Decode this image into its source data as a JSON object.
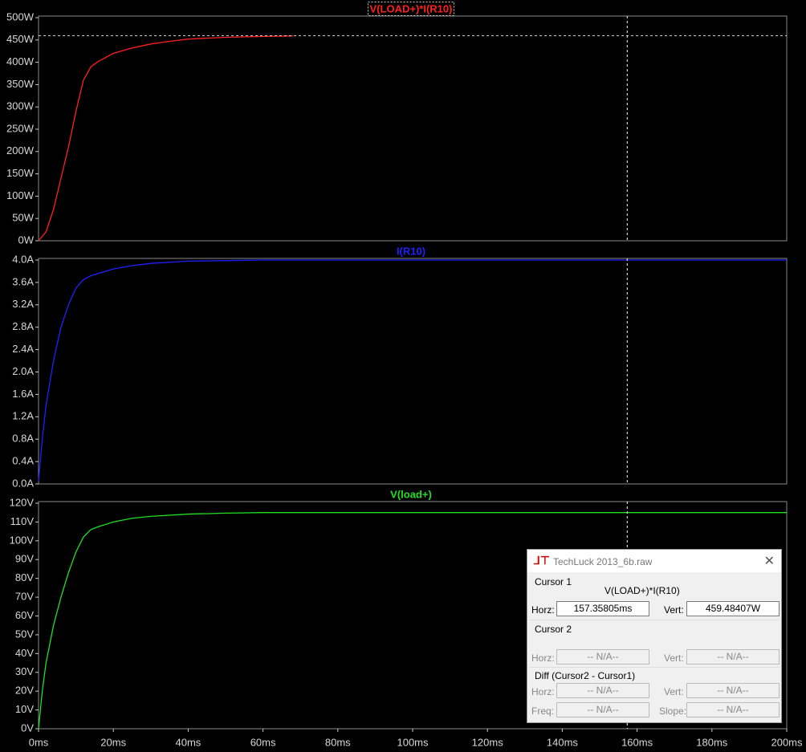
{
  "chart_data": [
    {
      "type": "line",
      "title": "V(LOAD+)*I(R10)",
      "x": [
        0,
        2,
        4,
        6,
        8,
        10,
        12,
        14,
        16,
        20,
        25,
        30,
        35,
        40,
        50,
        60,
        68
      ],
      "series": [
        {
          "color": "#ff2020",
          "values": [
            0,
            20,
            70,
            140,
            210,
            290,
            360,
            390,
            402,
            420,
            432,
            441,
            447,
            452,
            456,
            458,
            459
          ]
        }
      ],
      "xlim": [
        0,
        200
      ],
      "ylim": [
        0,
        500
      ],
      "yticks": [
        {
          "value": 0,
          "label": "0W"
        },
        {
          "value": 50,
          "label": "50W"
        },
        {
          "value": 100,
          "label": "100W"
        },
        {
          "value": 150,
          "label": "150W"
        },
        {
          "value": 200,
          "label": "200W"
        },
        {
          "value": 250,
          "label": "250W"
        },
        {
          "value": 300,
          "label": "300W"
        },
        {
          "value": 350,
          "label": "350W"
        },
        {
          "value": 400,
          "label": "400W"
        },
        {
          "value": 450,
          "label": "450W"
        },
        {
          "value": 500,
          "label": "500W"
        }
      ]
    },
    {
      "type": "line",
      "title": "I(R10)",
      "x": [
        0,
        1,
        2,
        4,
        6,
        8,
        10,
        12,
        14,
        16,
        20,
        25,
        30,
        40,
        50,
        60,
        80,
        120,
        160,
        200
      ],
      "series": [
        {
          "color": "#2020ff",
          "values": [
            0.05,
            0.8,
            1.4,
            2.2,
            2.8,
            3.2,
            3.5,
            3.65,
            3.72,
            3.76,
            3.84,
            3.9,
            3.94,
            3.98,
            3.99,
            4.0,
            4.0,
            4.0,
            4.0,
            4.0
          ]
        }
      ],
      "xlim": [
        0,
        200
      ],
      "ylim": [
        0,
        4.0
      ],
      "yticks": [
        {
          "value": 0,
          "label": "0.0A"
        },
        {
          "value": 0.4,
          "label": "0.4A"
        },
        {
          "value": 0.8,
          "label": "0.8A"
        },
        {
          "value": 1.2,
          "label": "1.2A"
        },
        {
          "value": 1.6,
          "label": "1.6A"
        },
        {
          "value": 2.0,
          "label": "2.0A"
        },
        {
          "value": 2.4,
          "label": "2.4A"
        },
        {
          "value": 2.8,
          "label": "2.8A"
        },
        {
          "value": 3.2,
          "label": "3.2A"
        },
        {
          "value": 3.6,
          "label": "3.6A"
        },
        {
          "value": 4.0,
          "label": "4.0A"
        }
      ]
    },
    {
      "type": "line",
      "title": "V(load+)",
      "x": [
        0,
        1,
        2,
        4,
        6,
        8,
        10,
        12,
        14,
        16,
        20,
        25,
        30,
        40,
        50,
        60,
        80,
        120,
        160,
        200
      ],
      "series": [
        {
          "color": "#20e020",
          "values": [
            0,
            20,
            35,
            55,
            70,
            83,
            94,
            102,
            106,
            107.5,
            110,
            112,
            113,
            114.2,
            114.7,
            115,
            115,
            115,
            115,
            115
          ]
        }
      ],
      "xlim": [
        0,
        200
      ],
      "ylim": [
        0,
        120
      ],
      "yticks": [
        {
          "value": 0,
          "label": "0V"
        },
        {
          "value": 10,
          "label": "10V"
        },
        {
          "value": 20,
          "label": "20V"
        },
        {
          "value": 30,
          "label": "30V"
        },
        {
          "value": 40,
          "label": "40V"
        },
        {
          "value": 50,
          "label": "50V"
        },
        {
          "value": 60,
          "label": "60V"
        },
        {
          "value": 70,
          "label": "70V"
        },
        {
          "value": 80,
          "label": "80V"
        },
        {
          "value": 90,
          "label": "90V"
        },
        {
          "value": 100,
          "label": "100V"
        },
        {
          "value": 110,
          "label": "110V"
        },
        {
          "value": 120,
          "label": "120V"
        }
      ],
      "xticks": [
        {
          "value": 0,
          "label": "0ms"
        },
        {
          "value": 20,
          "label": "20ms"
        },
        {
          "value": 40,
          "label": "40ms"
        },
        {
          "value": 60,
          "label": "60ms"
        },
        {
          "value": 80,
          "label": "80ms"
        },
        {
          "value": 100,
          "label": "100ms"
        },
        {
          "value": 120,
          "label": "120ms"
        },
        {
          "value": 140,
          "label": "140ms"
        },
        {
          "value": 160,
          "label": "160ms"
        },
        {
          "value": 180,
          "label": "180ms"
        },
        {
          "value": 200,
          "label": "200ms"
        }
      ]
    }
  ],
  "cursor_dialog": {
    "title": "TechLuck 2013_6b.raw",
    "cursor1": {
      "heading": "Cursor 1",
      "trace": "V(LOAD+)*I(R10)",
      "horz_label": "Horz:",
      "horz": {
        "value": 157.35805,
        "label": "157.35805ms"
      },
      "vert_label": "Vert:",
      "vert": {
        "value": 459.48407,
        "label": "459.48407W"
      }
    },
    "cursor2": {
      "heading": "Cursor 2",
      "horz_label": "Horz:",
      "horz": "-- N/A--",
      "vert_label": "Vert:",
      "vert": "-- N/A--"
    },
    "diff": {
      "heading": "Diff (Cursor2 - Cursor1)",
      "horz_label": "Horz:",
      "horz": "-- N/A--",
      "vert_label": "Vert:",
      "vert": "-- N/A--",
      "freq_label": "Freq:",
      "freq": "-- N/A--",
      "slope_label": "Slope:",
      "slope": "-- N/A--"
    }
  }
}
